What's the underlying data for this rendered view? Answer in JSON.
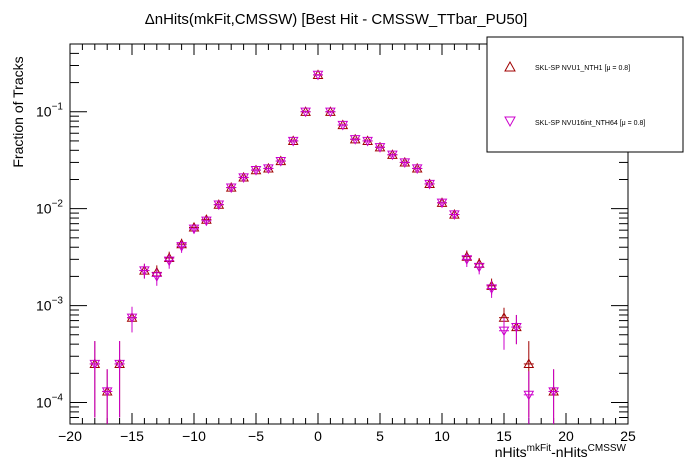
{
  "chart_data": {
    "type": "scatter",
    "title": "ΔnHits(mkFit,CMSSW) [Best Hit - CMSSW_TTbar_PU50]",
    "xlabel": {
      "base1": "nHits",
      "sup1": "mkFit",
      "sep": "-nHits",
      "sup2": "CMSSW"
    },
    "ylabel": "Fraction of Tracks",
    "xlim": [
      -20,
      25
    ],
    "ylim": [
      6e-05,
      0.5
    ],
    "yscale": "log",
    "x_ticks": [
      "−20",
      "−15",
      "−10",
      "−5",
      "0",
      "5",
      "10",
      "15",
      "20",
      "25"
    ],
    "x_tick_values": [
      -20,
      -15,
      -10,
      -5,
      0,
      5,
      10,
      15,
      20,
      25
    ],
    "y_ticks": [
      {
        "value": 0.1,
        "base": "10",
        "exp": "−1"
      },
      {
        "value": 0.01,
        "base": "10",
        "exp": "−2"
      },
      {
        "value": 0.001,
        "base": "10",
        "exp": "−3"
      },
      {
        "value": 0.0001,
        "base": "10",
        "exp": "−4"
      }
    ],
    "legend_position": "top-right",
    "series": [
      {
        "name": "SKL-SP NVU1_NTH1 [μ =  0.8]",
        "marker": "triangle-up",
        "color": "#a00000",
        "x": [
          -18,
          -17,
          -16,
          -15,
          -14,
          -13,
          -12,
          -11,
          -10,
          -9,
          -8,
          -7,
          -6,
          -5,
          -4,
          -3,
          -2,
          -1,
          0,
          1,
          2,
          3,
          4,
          5,
          6,
          7,
          8,
          9,
          10,
          11,
          12,
          13,
          14,
          15,
          16,
          17,
          18,
          19
        ],
        "y": [
          0.00025,
          0.00013,
          0.00025,
          0.00075,
          0.0023,
          0.0022,
          0.0031,
          0.0043,
          0.0064,
          0.0077,
          0.011,
          0.0165,
          0.021,
          0.025,
          0.026,
          0.031,
          0.05,
          0.1,
          0.24,
          0.1,
          0.073,
          0.052,
          0.05,
          0.043,
          0.036,
          0.03,
          0.026,
          0.018,
          0.0115,
          0.0087,
          0.0032,
          0.0027,
          0.0016,
          0.00075,
          0.0006,
          0.00025,
          null,
          0.00013
        ],
        "yerr": [
          0.00018,
          9e-05,
          0.00018,
          0.00022,
          0.0004,
          0.0004,
          0.0005,
          0.0006,
          0.0007,
          0.0008,
          0.001,
          0.0012,
          0.0013,
          0.0014,
          0.0015,
          0.0016,
          0.002,
          0.003,
          0.005,
          0.003,
          0.0025,
          0.002,
          0.002,
          0.002,
          0.0018,
          0.0016,
          0.0015,
          0.0012,
          0.001,
          0.0008,
          0.0005,
          0.0004,
          0.0003,
          0.0002,
          0.0002,
          0.00018,
          null,
          9e-05
        ]
      },
      {
        "name": "SKL-SP NVU16int_NTH64 [μ =  0.8]",
        "marker": "triangle-down",
        "color": "#cc00cc",
        "x": [
          -18,
          -17,
          -16,
          -15,
          -14,
          -13,
          -12,
          -11,
          -10,
          -9,
          -8,
          -7,
          -6,
          -5,
          -4,
          -3,
          -2,
          -1,
          0,
          1,
          2,
          3,
          4,
          5,
          6,
          7,
          8,
          9,
          10,
          11,
          12,
          13,
          14,
          15,
          16,
          17,
          18,
          19
        ],
        "y": [
          0.00025,
          0.00013,
          0.00025,
          0.00075,
          0.0023,
          0.002,
          0.0029,
          0.0041,
          0.0062,
          0.0075,
          0.011,
          0.0165,
          0.021,
          0.025,
          0.026,
          0.031,
          0.05,
          0.1,
          0.24,
          0.1,
          0.073,
          0.052,
          0.05,
          0.043,
          0.036,
          0.03,
          0.026,
          0.018,
          0.0115,
          0.0087,
          0.003,
          0.0025,
          0.0015,
          0.00055,
          0.0006,
          0.00012,
          null,
          0.00013
        ],
        "yerr": [
          0.00018,
          9e-05,
          0.00018,
          0.00022,
          0.0004,
          0.0004,
          0.0005,
          0.0006,
          0.0007,
          0.0008,
          0.001,
          0.0012,
          0.0013,
          0.0014,
          0.0015,
          0.0016,
          0.002,
          0.003,
          0.005,
          0.003,
          0.0025,
          0.002,
          0.002,
          0.002,
          0.0018,
          0.0016,
          0.0015,
          0.0012,
          0.001,
          0.0008,
          0.0005,
          0.0004,
          0.0003,
          0.0002,
          0.0002,
          9e-05,
          null,
          9e-05
        ]
      }
    ]
  }
}
